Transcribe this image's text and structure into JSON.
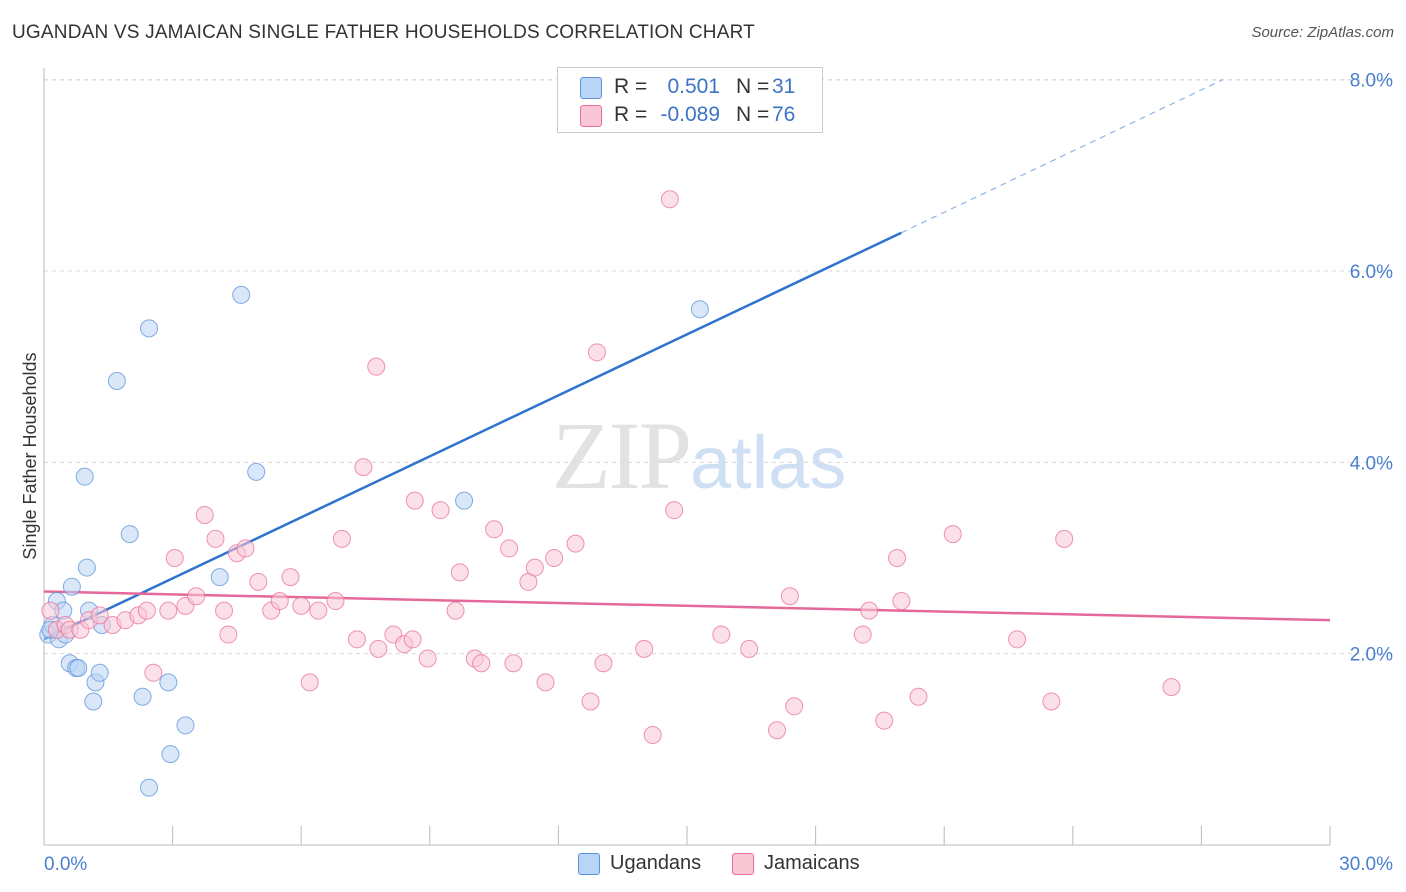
{
  "title": "UGANDAN VS JAMAICAN SINGLE FATHER HOUSEHOLDS CORRELATION CHART",
  "source": "Source: ZipAtlas.com",
  "watermark": {
    "zip": "ZIP",
    "atlas": "atlas"
  },
  "colors": {
    "ugandans": "#5b93da",
    "ugandans_fill": "#b9d4f4",
    "jamaicans": "#e8709a",
    "jamaicans_fill": "#f9c6d6",
    "axis_text": "#4a7fd0"
  },
  "legend_top": {
    "rows": [
      {
        "r_label": "R =",
        "r_value": "0.501",
        "n_label": "N =",
        "n_value": "31"
      },
      {
        "r_label": "R =",
        "r_value": "-0.089",
        "n_label": "N =",
        "n_value": "76"
      }
    ]
  },
  "legend_bottom": {
    "items": [
      {
        "label": "Ugandans"
      },
      {
        "label": "Jamaicans"
      }
    ]
  },
  "chart_data": {
    "type": "scatter",
    "title": "UGANDAN VS JAMAICAN SINGLE FATHER HOUSEHOLDS CORRELATION CHART",
    "xlabel": "",
    "ylabel": "Single Father Households",
    "xlim": [
      0,
      30
    ],
    "ylim": [
      0,
      8.4
    ],
    "x_tick_labels": [
      "0.0%",
      "30.0%"
    ],
    "y_ticks": [
      2,
      4,
      6,
      8
    ],
    "y_tick_labels": [
      "2.0%",
      "4.0%",
      "6.0%",
      "8.0%"
    ],
    "grid": true,
    "legend_placement": "bottom-center",
    "series": [
      {
        "name": "Ugandans",
        "color": "#5b93da",
        "points": [
          [
            0.1,
            2.2
          ],
          [
            0.2,
            2.3
          ],
          [
            0.3,
            2.55
          ],
          [
            0.35,
            2.15
          ],
          [
            0.45,
            2.45
          ],
          [
            0.5,
            2.2
          ],
          [
            0.6,
            1.9
          ],
          [
            0.65,
            2.7
          ],
          [
            0.75,
            1.85
          ],
          [
            0.8,
            1.85
          ],
          [
            0.95,
            3.85
          ],
          [
            1.0,
            2.9
          ],
          [
            1.05,
            2.45
          ],
          [
            1.15,
            1.5
          ],
          [
            1.2,
            1.7
          ],
          [
            1.3,
            1.8
          ],
          [
            1.35,
            2.3
          ],
          [
            1.7,
            4.85
          ],
          [
            2.0,
            3.25
          ],
          [
            2.3,
            1.55
          ],
          [
            2.45,
            0.6
          ],
          [
            2.45,
            5.4
          ],
          [
            2.9,
            1.7
          ],
          [
            2.95,
            0.95
          ],
          [
            3.3,
            1.25
          ],
          [
            4.1,
            2.8
          ],
          [
            4.6,
            5.75
          ],
          [
            4.95,
            3.9
          ],
          [
            9.8,
            3.6
          ],
          [
            15.3,
            5.6
          ],
          [
            0.15,
            2.25
          ]
        ],
        "trend": {
          "x": [
            0,
            20
          ],
          "y": [
            2.15,
            6.4
          ],
          "dashed_to": [
            27.5,
            8.0
          ]
        }
      },
      {
        "name": "Jamaicans",
        "color": "#e8709a",
        "points": [
          [
            0.15,
            2.45
          ],
          [
            0.3,
            2.25
          ],
          [
            0.5,
            2.3
          ],
          [
            0.6,
            2.25
          ],
          [
            0.85,
            2.25
          ],
          [
            1.05,
            2.35
          ],
          [
            1.3,
            2.4
          ],
          [
            1.6,
            2.3
          ],
          [
            1.9,
            2.35
          ],
          [
            2.2,
            2.4
          ],
          [
            2.4,
            2.45
          ],
          [
            2.55,
            1.8
          ],
          [
            2.9,
            2.45
          ],
          [
            3.05,
            3.0
          ],
          [
            3.3,
            2.5
          ],
          [
            3.55,
            2.6
          ],
          [
            3.75,
            3.45
          ],
          [
            4.0,
            3.2
          ],
          [
            4.2,
            2.45
          ],
          [
            4.3,
            2.2
          ],
          [
            4.5,
            3.05
          ],
          [
            4.7,
            3.1
          ],
          [
            5.0,
            2.75
          ],
          [
            5.3,
            2.45
          ],
          [
            5.5,
            2.55
          ],
          [
            5.75,
            2.8
          ],
          [
            6.0,
            2.5
          ],
          [
            6.2,
            1.7
          ],
          [
            6.4,
            2.45
          ],
          [
            6.8,
            2.55
          ],
          [
            6.95,
            3.2
          ],
          [
            7.3,
            2.15
          ],
          [
            7.45,
            3.95
          ],
          [
            7.75,
            5.0
          ],
          [
            7.8,
            2.05
          ],
          [
            8.15,
            2.2
          ],
          [
            8.4,
            2.1
          ],
          [
            8.6,
            2.15
          ],
          [
            8.65,
            3.6
          ],
          [
            8.95,
            1.95
          ],
          [
            9.25,
            3.5
          ],
          [
            9.6,
            2.45
          ],
          [
            9.7,
            2.85
          ],
          [
            10.05,
            1.95
          ],
          [
            10.2,
            1.9
          ],
          [
            10.5,
            3.3
          ],
          [
            10.85,
            3.1
          ],
          [
            10.95,
            1.9
          ],
          [
            11.3,
            2.75
          ],
          [
            11.45,
            2.9
          ],
          [
            11.7,
            1.7
          ],
          [
            11.9,
            3.0
          ],
          [
            12.4,
            3.15
          ],
          [
            12.75,
            1.5
          ],
          [
            12.9,
            5.15
          ],
          [
            13.05,
            1.9
          ],
          [
            14.0,
            2.05
          ],
          [
            14.2,
            1.15
          ],
          [
            14.6,
            6.75
          ],
          [
            14.7,
            3.5
          ],
          [
            15.8,
            2.2
          ],
          [
            16.45,
            2.05
          ],
          [
            17.1,
            1.2
          ],
          [
            17.4,
            2.6
          ],
          [
            17.5,
            1.45
          ],
          [
            19.1,
            2.2
          ],
          [
            19.25,
            2.45
          ],
          [
            19.6,
            1.3
          ],
          [
            19.9,
            3.0
          ],
          [
            20.0,
            2.55
          ],
          [
            20.4,
            1.55
          ],
          [
            21.2,
            3.25
          ],
          [
            22.7,
            2.15
          ],
          [
            23.5,
            1.5
          ],
          [
            23.8,
            3.2
          ],
          [
            26.3,
            1.65
          ]
        ],
        "trend": {
          "x": [
            0,
            30
          ],
          "y": [
            2.65,
            2.35
          ]
        }
      }
    ]
  }
}
